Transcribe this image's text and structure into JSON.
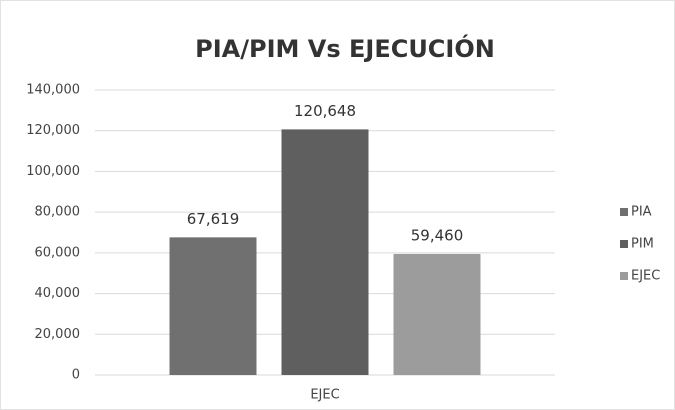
{
  "chart_data": {
    "type": "bar",
    "title": "PIA/PIM Vs EJECUCIÓN",
    "categories": [
      "EJEC"
    ],
    "series": [
      {
        "name": "PIA",
        "color": "#707070",
        "values": [
          67619
        ],
        "value_labels": [
          "67,619"
        ]
      },
      {
        "name": "PIM",
        "color": "#5f5f5f",
        "values": [
          120648
        ],
        "value_labels": [
          "120,648"
        ]
      },
      {
        "name": "EJEC",
        "color": "#9c9c9c",
        "values": [
          59460
        ],
        "value_labels": [
          "59,460"
        ]
      }
    ],
    "ylim": [
      0,
      140000
    ],
    "yticks": [
      0,
      {
        "value": 20000,
        "label": "20,000"
      },
      {
        "value": 40000,
        "label": "40,000"
      },
      {
        "value": 60000,
        "label": "60,000"
      },
      {
        "value": 80000,
        "label": "80,000"
      },
      {
        "value": 100000,
        "label": "100,000"
      },
      {
        "value": 120000,
        "label": "120,000"
      },
      {
        "value": 140000,
        "label": "140,000"
      }
    ],
    "grid": true,
    "legend": "right"
  }
}
